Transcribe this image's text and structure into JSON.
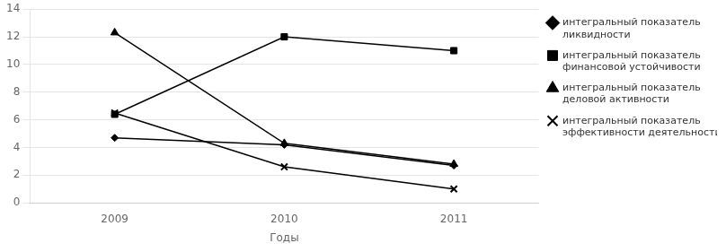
{
  "chart_data": {
    "type": "line",
    "categories": [
      "2009",
      "2010",
      "2011"
    ],
    "series": [
      {
        "name": "интегральный показатель\nликвидности",
        "values": [
          4.7,
          4.2,
          2.7
        ],
        "marker": "diamond",
        "color": "#000000"
      },
      {
        "name": "интегральный показатель\nфинансовой устойчивости",
        "values": [
          6.4,
          12.0,
          11.0
        ],
        "marker": "square",
        "color": "#000000"
      },
      {
        "name": "интегральный показатель\nделовой активности",
        "values": [
          12.3,
          4.3,
          2.8
        ],
        "marker": "triangle",
        "color": "#000000"
      },
      {
        "name": "интегральный показатель\nэффективности деятельности",
        "values": [
          6.5,
          2.6,
          1.0
        ],
        "marker": "x",
        "color": "#000000"
      }
    ],
    "x_label": "Годы",
    "ylim": [
      0,
      14
    ],
    "yticks": [
      0,
      2,
      4,
      6,
      8,
      10,
      12,
      14
    ],
    "grid": "y",
    "legend": "right"
  }
}
